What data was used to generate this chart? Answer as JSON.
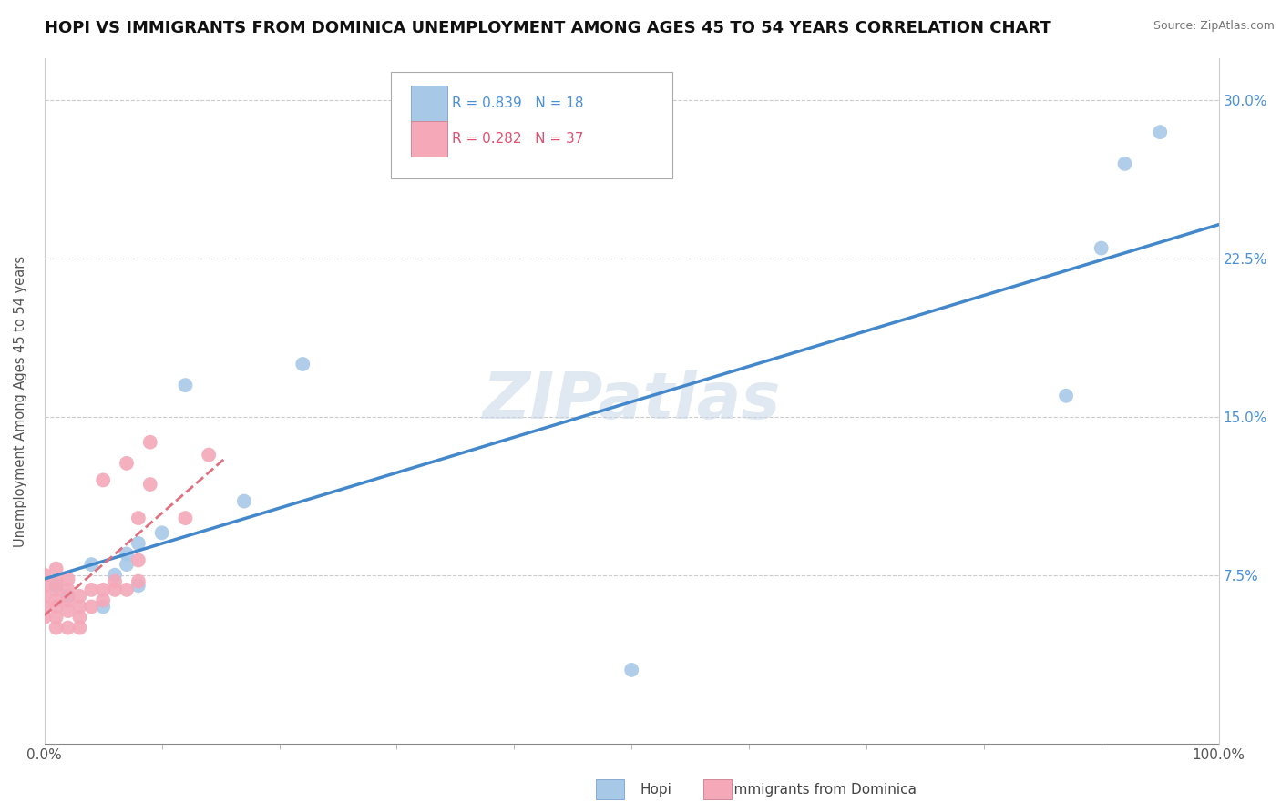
{
  "title": "HOPI VS IMMIGRANTS FROM DOMINICA UNEMPLOYMENT AMONG AGES 45 TO 54 YEARS CORRELATION CHART",
  "source": "Source: ZipAtlas.com",
  "ylabel": "Unemployment Among Ages 45 to 54 years",
  "xlim": [
    0,
    1.0
  ],
  "ylim": [
    -0.005,
    0.32
  ],
  "xtick_positions": [
    0.0,
    1.0
  ],
  "xtick_labels": [
    "0.0%",
    "100.0%"
  ],
  "ytick_positions": [
    0.075,
    0.15,
    0.225,
    0.3
  ],
  "ytick_labels": [
    "7.5%",
    "15.0%",
    "22.5%",
    "30.0%"
  ],
  "hopi_color": "#a8c8e8",
  "dominica_color": "#f4a8b8",
  "hopi_R": 0.839,
  "hopi_N": 18,
  "dominica_R": 0.282,
  "dominica_N": 37,
  "hopi_line_color": "#4488cc",
  "dominica_line_color": "#e07080",
  "hopi_points_x": [
    0.01,
    0.02,
    0.04,
    0.05,
    0.06,
    0.07,
    0.07,
    0.08,
    0.08,
    0.1,
    0.12,
    0.17,
    0.22,
    0.5,
    0.87,
    0.9,
    0.92,
    0.95
  ],
  "hopi_points_y": [
    0.07,
    0.065,
    0.08,
    0.06,
    0.075,
    0.08,
    0.085,
    0.09,
    0.07,
    0.095,
    0.165,
    0.11,
    0.175,
    0.03,
    0.16,
    0.23,
    0.27,
    0.285
  ],
  "dominica_points_x": [
    0.0,
    0.0,
    0.0,
    0.0,
    0.0,
    0.01,
    0.01,
    0.01,
    0.01,
    0.01,
    0.01,
    0.01,
    0.02,
    0.02,
    0.02,
    0.02,
    0.02,
    0.03,
    0.03,
    0.03,
    0.03,
    0.04,
    0.04,
    0.05,
    0.05,
    0.05,
    0.06,
    0.06,
    0.07,
    0.07,
    0.08,
    0.08,
    0.08,
    0.09,
    0.09,
    0.12,
    0.14
  ],
  "dominica_points_y": [
    0.055,
    0.06,
    0.065,
    0.07,
    0.075,
    0.05,
    0.055,
    0.06,
    0.063,
    0.068,
    0.072,
    0.078,
    0.05,
    0.058,
    0.063,
    0.068,
    0.073,
    0.05,
    0.055,
    0.06,
    0.065,
    0.06,
    0.068,
    0.063,
    0.068,
    0.12,
    0.068,
    0.072,
    0.068,
    0.128,
    0.072,
    0.082,
    0.102,
    0.118,
    0.138,
    0.102,
    0.132
  ],
  "watermark": "ZIPatlas",
  "grid_color": "#cccccc",
  "background_color": "#ffffff",
  "title_fontsize": 13,
  "hopi_legend_color": "#4a90d9",
  "dominica_legend_color": "#e05070"
}
